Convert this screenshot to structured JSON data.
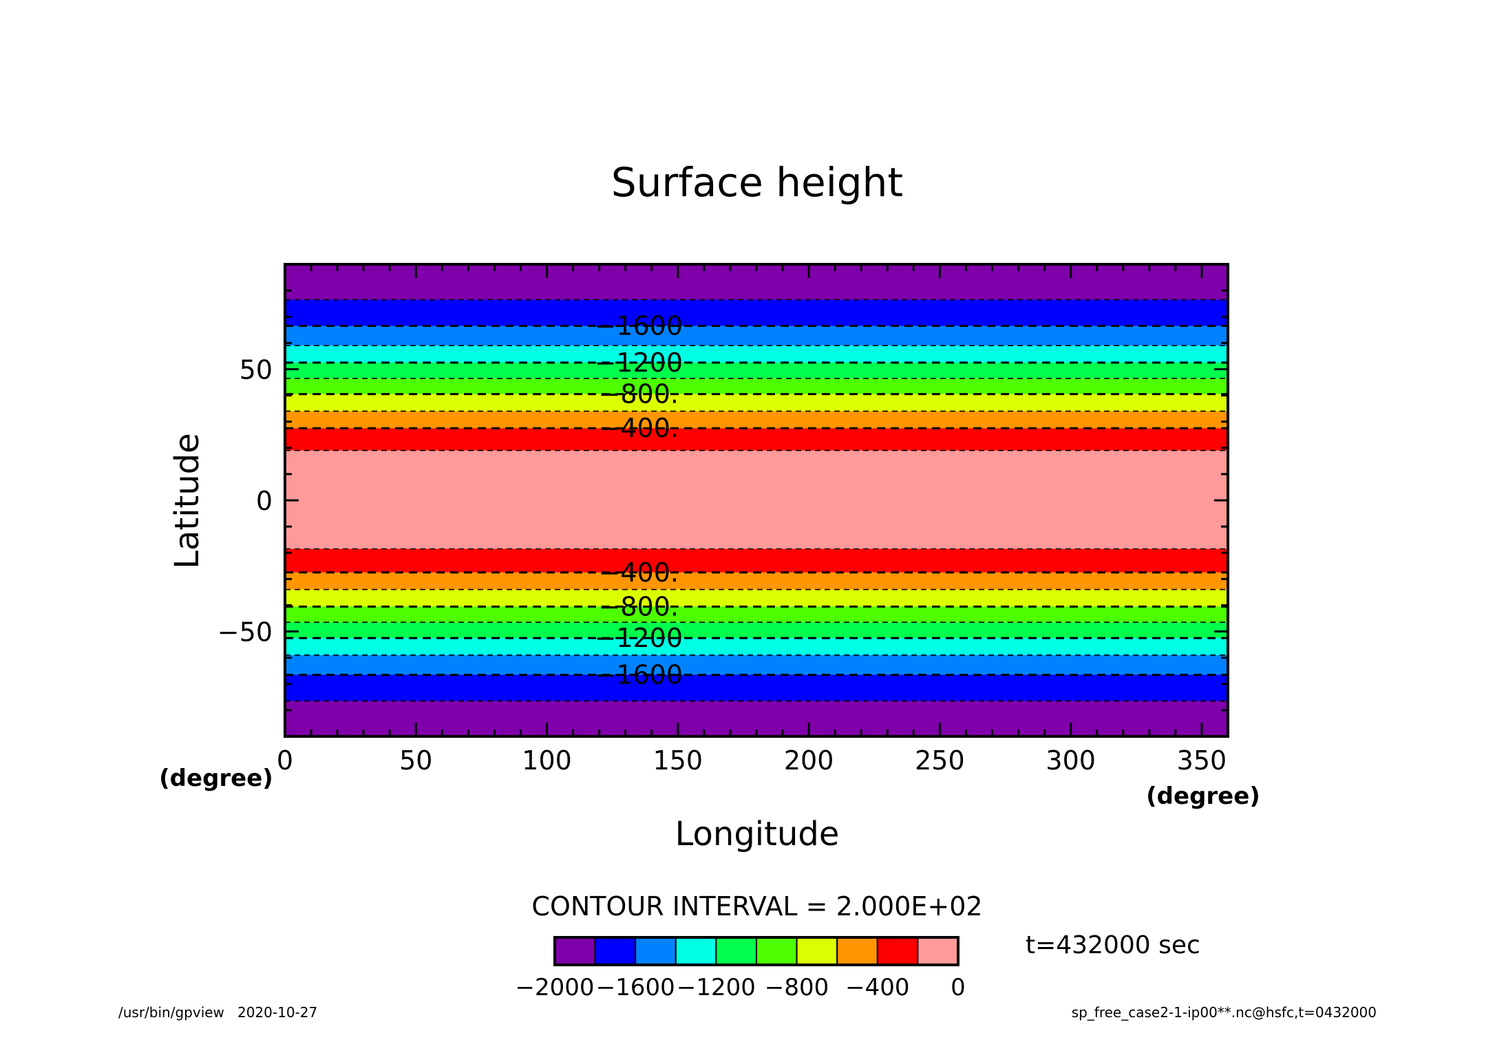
{
  "chart_data": {
    "type": "heatmap",
    "title": "Surface height",
    "xlabel": "Longitude",
    "ylabel": "Latitude",
    "x_unit": "(degree)",
    "y_unit": "(degree)",
    "xlim": [
      0,
      360
    ],
    "ylim": [
      -90,
      90
    ],
    "x_ticks": [
      "0",
      "50",
      "100",
      "150",
      "200",
      "250",
      "300",
      "350"
    ],
    "x_tick_values": [
      0,
      50,
      100,
      150,
      200,
      250,
      300,
      350
    ],
    "y_ticks": [
      "50",
      "0",
      "−50"
    ],
    "y_tick_values": [
      50,
      0,
      -50
    ],
    "bands": [
      {
        "lat_from": 76.5,
        "lat_to": 90,
        "color": "#7f00aa"
      },
      {
        "lat_from": 66.5,
        "lat_to": 76.5,
        "color": "#0000ff"
      },
      {
        "lat_from": 59.0,
        "lat_to": 66.5,
        "color": "#0082ff"
      },
      {
        "lat_from": 52.5,
        "lat_to": 59.0,
        "color": "#00ffe5"
      },
      {
        "lat_from": 46.5,
        "lat_to": 52.5,
        "color": "#00ff4d"
      },
      {
        "lat_from": 40.5,
        "lat_to": 46.5,
        "color": "#4dff00"
      },
      {
        "lat_from": 34.0,
        "lat_to": 40.5,
        "color": "#dcff00"
      },
      {
        "lat_from": 27.5,
        "lat_to": 34.0,
        "color": "#ff9600"
      },
      {
        "lat_from": 19.0,
        "lat_to": 27.5,
        "color": "#ff0000"
      },
      {
        "lat_from": -18.5,
        "lat_to": 19.0,
        "color": "#ff9a9a"
      },
      {
        "lat_from": -27.5,
        "lat_to": -18.5,
        "color": "#ff0000"
      },
      {
        "lat_from": -34.0,
        "lat_to": -27.5,
        "color": "#ff9600"
      },
      {
        "lat_from": -40.5,
        "lat_to": -34.0,
        "color": "#dcff00"
      },
      {
        "lat_from": -46.5,
        "lat_to": -40.5,
        "color": "#4dff00"
      },
      {
        "lat_from": -52.5,
        "lat_to": -46.5,
        "color": "#00ff4d"
      },
      {
        "lat_from": -59.0,
        "lat_to": -52.5,
        "color": "#00ffe5"
      },
      {
        "lat_from": -66.5,
        "lat_to": -59.0,
        "color": "#0082ff"
      },
      {
        "lat_from": -76.5,
        "lat_to": -66.5,
        "color": "#0000ff"
      },
      {
        "lat_from": -90,
        "lat_to": -76.5,
        "color": "#7f00aa"
      }
    ],
    "contour_lines": [
      76.5,
      66.5,
      59.0,
      52.5,
      46.5,
      40.5,
      34.0,
      27.5,
      19.0,
      -18.5,
      -27.5,
      -34.0,
      -40.5,
      -46.5,
      -52.5,
      -59.0,
      -66.5,
      -76.5
    ],
    "contour_labels": [
      {
        "lat": 66.5,
        "lon": 135,
        "text": "−1600"
      },
      {
        "lat": 52.5,
        "lon": 135,
        "text": "−1200"
      },
      {
        "lat": 40.5,
        "lon": 135,
        "text": "−800."
      },
      {
        "lat": 27.5,
        "lon": 135,
        "text": "−400."
      },
      {
        "lat": -27.5,
        "lon": 135,
        "text": "−400."
      },
      {
        "lat": -40.5,
        "lon": 135,
        "text": "−800."
      },
      {
        "lat": -52.5,
        "lon": 135,
        "text": "−1200"
      },
      {
        "lat": -66.5,
        "lon": 135,
        "text": "−1600"
      }
    ],
    "contour_interval_text": "CONTOUR INTERVAL = 2.000E+02",
    "colorbar": {
      "colors": [
        "#7f00aa",
        "#0000ff",
        "#0082ff",
        "#00ffe5",
        "#00ff4d",
        "#4dff00",
        "#dcff00",
        "#ff9600",
        "#ff0000",
        "#ff9a9a"
      ],
      "tick_labels": [
        "−2000",
        "−1600",
        "−1200",
        "−800",
        "−400",
        "0"
      ],
      "tick_values": [
        -2000,
        -1600,
        -1200,
        -800,
        -400,
        0
      ]
    },
    "time_label": "t=432000 sec",
    "footer_left": "/usr/bin/gpview   2020-10-27",
    "footer_right": "sp_free_case2-1-ip00**.nc@hsfc,t=0432000",
    "grid": false,
    "legend": "bottom"
  }
}
